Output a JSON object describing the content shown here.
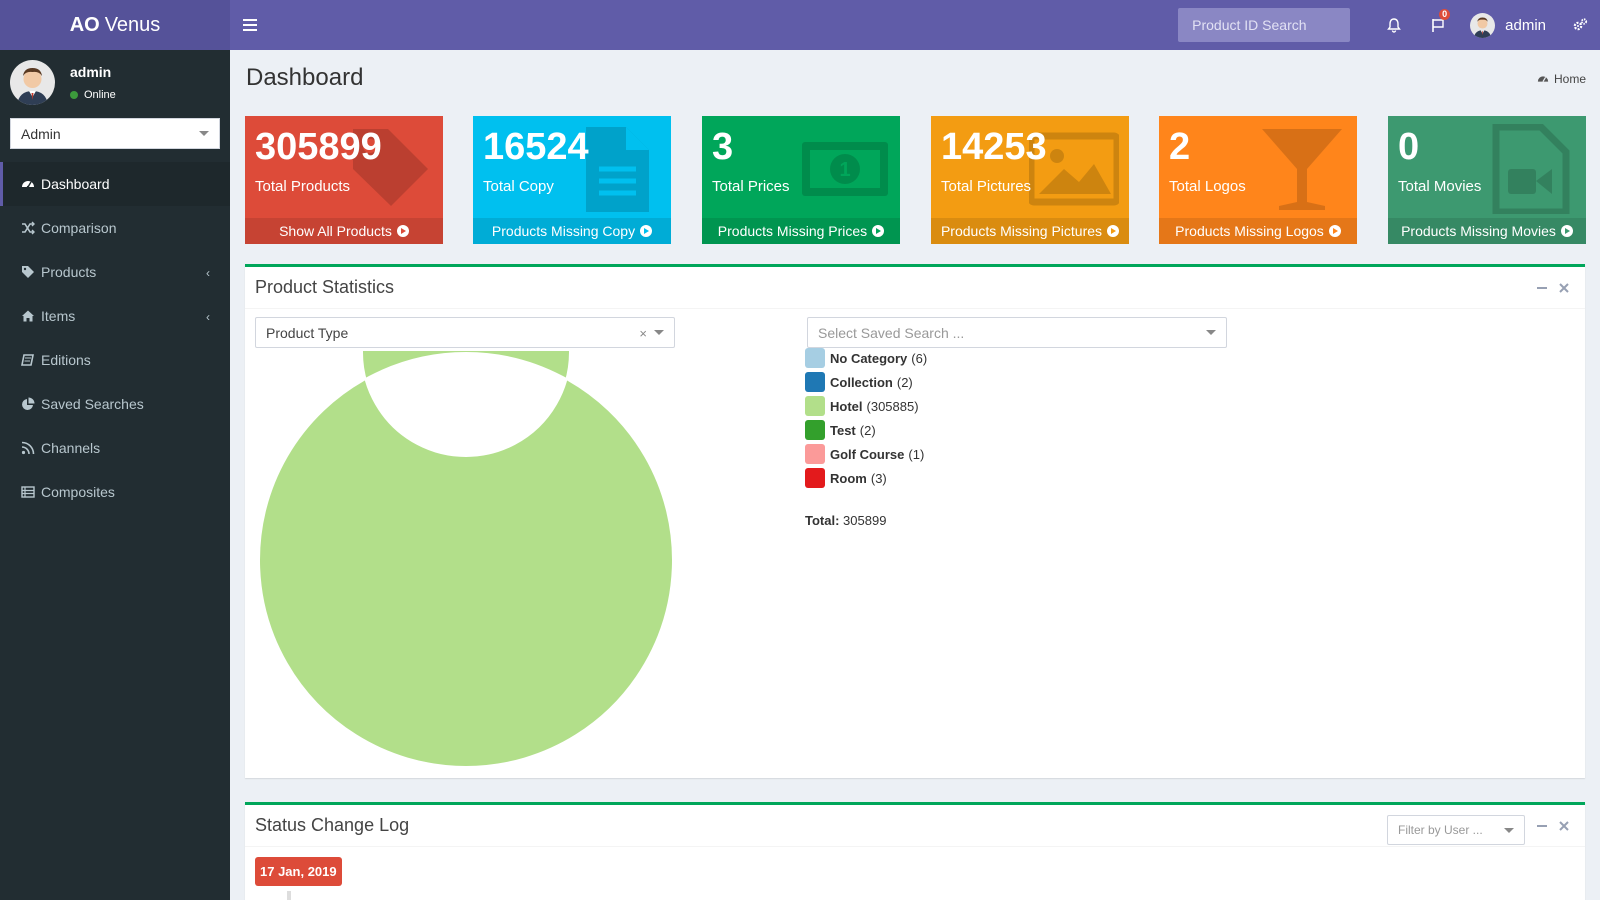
{
  "app": {
    "logo_bold": "AO",
    "logo_light": "Venus"
  },
  "header": {
    "search_placeholder": "Product ID Search",
    "notifications_badge": "0",
    "user_name": "admin"
  },
  "sidebar": {
    "user_name": "admin",
    "user_status": "Online",
    "role_selected": "Admin",
    "items": [
      {
        "label": "Dashboard",
        "icon": "dashboard-icon",
        "active": true
      },
      {
        "label": "Comparison",
        "icon": "random-icon"
      },
      {
        "label": "Products",
        "icon": "tag-icon",
        "has_children": true
      },
      {
        "label": "Items",
        "icon": "home-icon",
        "has_children": true
      },
      {
        "label": "Editions",
        "icon": "book-icon"
      },
      {
        "label": "Saved Searches",
        "icon": "pie-chart-icon"
      },
      {
        "label": "Channels",
        "icon": "rss-icon"
      },
      {
        "label": "Composites",
        "icon": "list-icon"
      }
    ]
  },
  "page": {
    "title": "Dashboard",
    "breadcrumb": "Home"
  },
  "stats": [
    {
      "value": "305899",
      "label": "Total Products",
      "link": "Show All Products",
      "color": "#dd4b39",
      "icon": "tag-icon"
    },
    {
      "value": "16524",
      "label": "Total Copy",
      "link": "Products Missing Copy",
      "color": "#00c0ef",
      "icon": "file-text-icon"
    },
    {
      "value": "3",
      "label": "Total Prices",
      "link": "Products Missing Prices",
      "color": "#00a65a",
      "icon": "money-icon"
    },
    {
      "value": "14253",
      "label": "Total Pictures",
      "link": "Products Missing Pictures",
      "color": "#f39c12",
      "icon": "picture-icon"
    },
    {
      "value": "2",
      "label": "Total Logos",
      "link": "Products Missing Logos",
      "color": "#ff851b",
      "icon": "glass-icon"
    },
    {
      "value": "0",
      "label": "Total Movies",
      "link": "Products Missing Movies",
      "color": "#3d9970",
      "icon": "video-icon"
    }
  ],
  "product_statistics": {
    "title": "Product Statistics",
    "type_select": "Product Type",
    "saved_search_placeholder": "Select Saved Search ...",
    "total_label": "Total:",
    "total_value": "305899"
  },
  "chart_data": {
    "type": "pie",
    "categories": [
      "No Category",
      "Collection",
      "Hotel",
      "Test",
      "Golf Course",
      "Room"
    ],
    "values": [
      6,
      2,
      305885,
      2,
      1,
      3
    ],
    "colors": [
      "#a6cee3",
      "#1f78b4",
      "#b2df8a",
      "#33a02c",
      "#fb9a99",
      "#e31a1c"
    ],
    "legend_position": "right",
    "donut": true
  },
  "status_log": {
    "title": "Status Change Log",
    "filter_placeholder": "Filter by User ...",
    "date": "17 Jan, 2019"
  }
}
